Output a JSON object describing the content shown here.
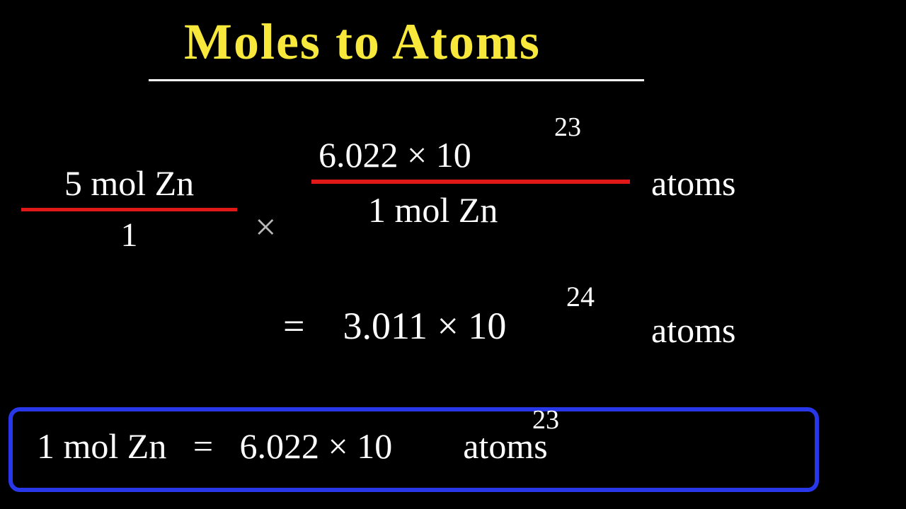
{
  "title": "Moles to Atoms",
  "colors": {
    "background": "#000000",
    "title": "#f7e83b",
    "text": "#ffffff",
    "underline": "#ffffff",
    "fraction_line": "#e01818",
    "times_sign": "#b8b8b8",
    "box_border": "#2838e8"
  },
  "fraction1": {
    "numerator": "5 mol Zn",
    "denominator": "1"
  },
  "times": "×",
  "fraction2": {
    "numerator_base": "6.022 × 10",
    "numerator_exp": "23",
    "numerator_unit": "atoms",
    "denominator": "1 mol Zn"
  },
  "result": {
    "equals": "=",
    "value_base": "3.011 × 10",
    "value_exp": "24",
    "unit": "atoms"
  },
  "formula": {
    "lhs": "1 mol Zn",
    "equals": "=",
    "rhs_base": "6.022 × 10",
    "rhs_exp": "23",
    "rhs_unit": "atoms"
  },
  "style": {
    "title_fontsize": 72,
    "body_fontsize": 50,
    "exp_fontsize": 38,
    "box_border_width": 6,
    "box_border_radius": 16
  }
}
